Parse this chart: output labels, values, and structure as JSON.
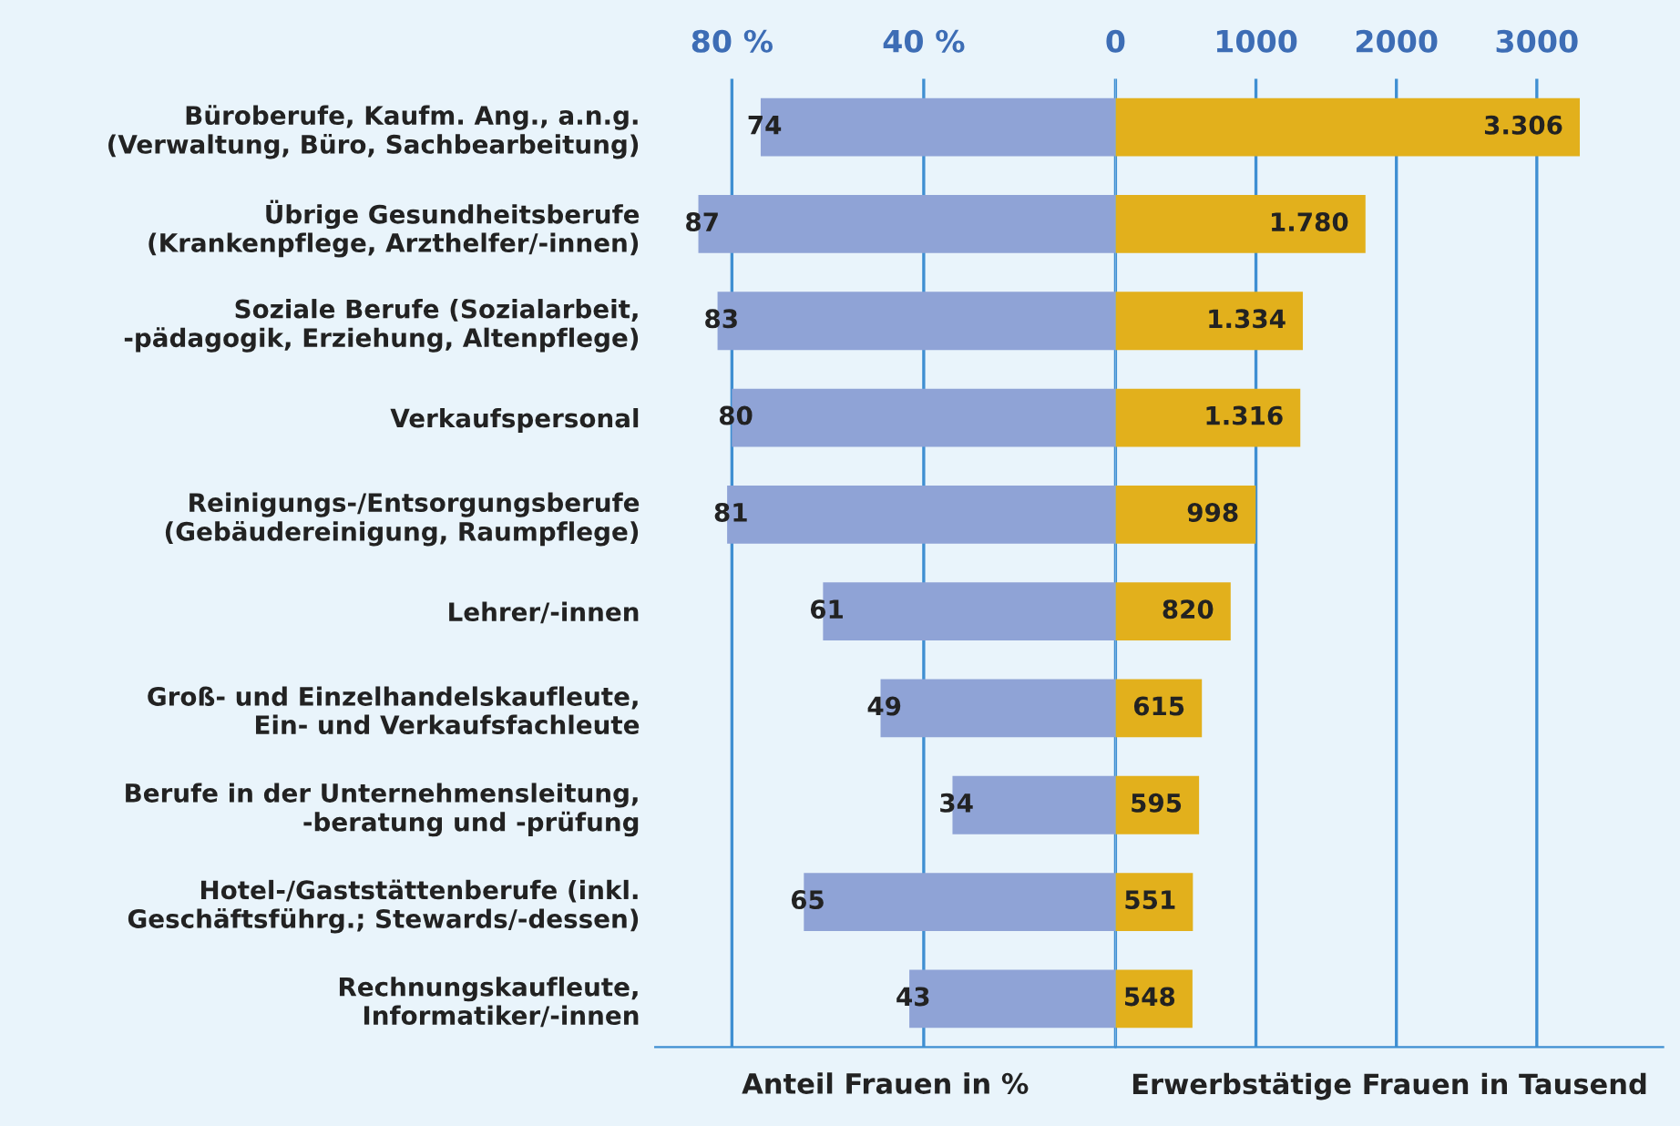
{
  "chart_data": [
    {
      "type": "bar",
      "orientation": "horizontal",
      "xlabel": "Anteil Frauen in %",
      "categories": [
        "Büroberufe, Kaufm. Ang., a.n.g.\n(Verwaltung, Büro, Sachbearbeitung)",
        "Übrige Gesundheitsberufe\n(Krankenpflege, Arzthelfer/-innen)",
        "Soziale Berufe (Sozialarbeit,\n-pädagogik, Erziehung, Altenpflege)",
        "Verkaufspersonal",
        "Reinigungs-/Entsorgungsberufe\n(Gebäudereinigung, Raumpflege)",
        "Lehrer/-innen",
        "Groß- und Einzelhandelskaufleute,\nEin- und Verkaufsfachleute",
        "Berufe in der Unternehmensleitung,\n-beratung und -prüfung",
        "Hotel-/Gaststättenberufe (inkl.\nGeschäftsführg.; Stewards/-dessen)",
        "Rechnungskaufleute,\nInformatiker/-innen"
      ],
      "values": [
        74,
        87,
        83,
        80,
        81,
        61,
        49,
        34,
        65,
        43
      ],
      "color": "#8fa3d6",
      "data_labels": true,
      "xlim": [
        96,
        0
      ],
      "xticks": [
        {
          "value": 80,
          "label": "80 %"
        },
        {
          "value": 40,
          "label": "40 %"
        },
        0
      ],
      "grid": "x"
    },
    {
      "type": "bar",
      "orientation": "horizontal",
      "xlabel": "Erwerbstätige Frauen in Tausend",
      "categories": [
        null,
        null,
        null,
        null,
        null,
        null,
        null,
        null,
        null,
        null
      ],
      "values": [
        3306,
        1780,
        1334,
        1316,
        998,
        820,
        615,
        595,
        551,
        548
      ],
      "color": "#e2b01c",
      "value_labels": [
        "3.306",
        "1.780",
        "1.334",
        "1.316",
        "998",
        "820",
        "615",
        "595",
        "551",
        "548"
      ],
      "xlim": [
        0,
        3900
      ],
      "xticks": [
        {
          "value": 0,
          "label": null
        },
        1000,
        2000,
        3000
      ],
      "grid": "x",
      "tick_labels": "x"
    }
  ]
}
